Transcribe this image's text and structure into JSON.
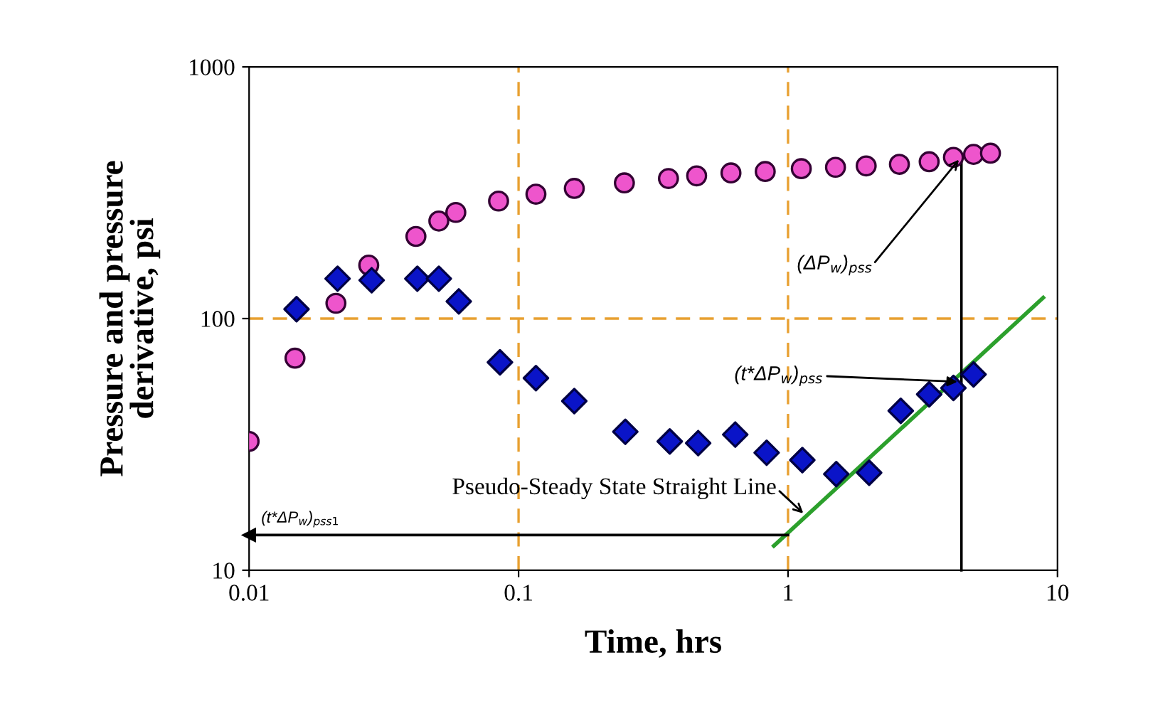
{
  "chart_data": {
    "type": "scatter",
    "xlabel": "Time, hrs",
    "ylabel": "Pressure and pressure\nderivative, psi",
    "log": "xy",
    "xlim": [
      0.01,
      10
    ],
    "ylim": [
      10,
      1000
    ],
    "xticks": [
      0.01,
      0.1,
      1,
      10
    ],
    "yticks": [
      10,
      100,
      1000
    ],
    "grid": false,
    "legend": false,
    "series": [
      {
        "marker": "circle",
        "color": "#ee55cc",
        "x": [
          0.01,
          0.0148,
          0.021,
          0.0278,
          0.0416,
          0.0506,
          0.0585,
          0.0843,
          0.116,
          0.161,
          0.247,
          0.36,
          0.458,
          0.614,
          0.823,
          1.12,
          1.5,
          1.95,
          2.59,
          3.34,
          4.11,
          4.88,
          5.64
        ],
        "values": [
          32.5,
          69.6,
          115,
          163,
          212,
          244,
          264,
          293,
          312,
          329,
          346,
          360,
          369,
          379,
          384,
          394,
          399,
          404,
          410,
          420,
          437,
          449,
          454
        ]
      },
      {
        "marker": "diamond",
        "color": "#0a14c8",
        "x": [
          0.015,
          0.0213,
          0.0285,
          0.0421,
          0.0506,
          0.06,
          0.0853,
          0.116,
          0.161,
          0.249,
          0.364,
          0.464,
          0.637,
          0.833,
          1.13,
          1.51,
          2.0,
          2.62,
          3.34,
          4.11,
          4.88
        ],
        "values": [
          109,
          144,
          142,
          144,
          144,
          117,
          67,
          58,
          47,
          35.5,
          32.5,
          32,
          34.6,
          29.3,
          27.4,
          24.1,
          24.4,
          43,
          50,
          53,
          60
        ]
      },
      {
        "type": "line",
        "marker": "none",
        "color": "#2ca02c",
        "x": [
          0.886,
          8.85
        ],
        "values": [
          12.5,
          121
        ]
      },
      {
        "type": "line",
        "marker": "none",
        "color": "#000000",
        "x": [
          4.4,
          4.4
        ],
        "values": [
          10,
          440
        ]
      },
      {
        "type": "line",
        "marker": "triangle",
        "color": "#000000",
        "x": [
          1,
          0.01
        ],
        "values": [
          13.8,
          13.8
        ]
      }
    ],
    "ref_lines": [
      {
        "axis": "x",
        "value": 0.1,
        "color": "#e8a030",
        "line_style": "dashed"
      },
      {
        "axis": "x",
        "value": 1,
        "color": "#e8a030",
        "line_style": "dashed"
      },
      {
        "axis": "y",
        "value": 100,
        "color": "#e8a030",
        "line_style": "dashed"
      }
    ],
    "annotations": [
      "Pseudo-Steady State Straight Line",
      {
        "text": "(ΔP$_{w}$)$_{pss}$",
        "x": 4.4,
        "y": 440
      },
      {
        "text": "(t*ΔP$_{w}$)$_{pss}$",
        "x": 4.4,
        "y": 56
      },
      "(t*ΔP$_{w}$)$_{pss1}$"
    ]
  }
}
